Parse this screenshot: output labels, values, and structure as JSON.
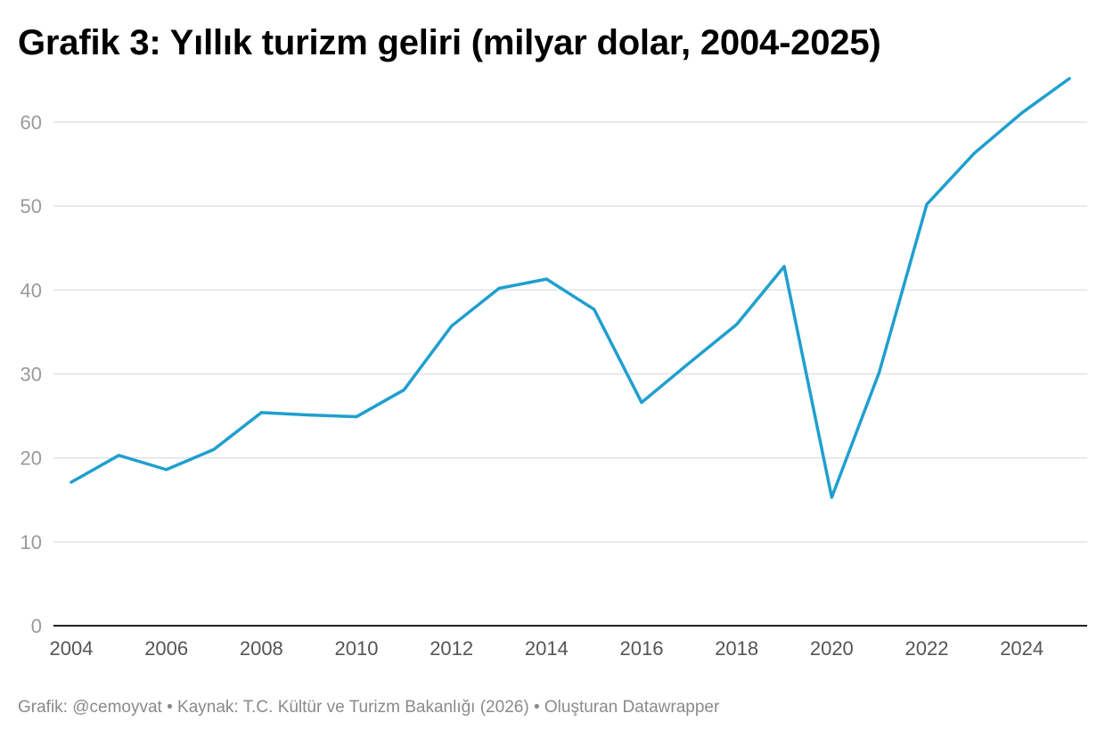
{
  "title": "Grafik 3: Yıllık turizm geliri (milyar dolar, 2004-2025)",
  "footer": {
    "credit": "Grafik: @cemoyvat",
    "source": "Kaynak: T.C. Kültür ve Turizm Bakanlığı (2026)",
    "tool": "Oluşturan Datawrapper",
    "separator": "•"
  },
  "colors": {
    "line": "#1f9fcf",
    "grid": "#e3e3e3",
    "baseline": "#222222"
  },
  "chart_data": {
    "type": "line",
    "title": "Grafik 3: Yıllık turizm geliri (milyar dolar, 2004-2025)",
    "xlabel": "",
    "ylabel": "",
    "ylim": [
      0,
      65
    ],
    "xlim": [
      2004,
      2025
    ],
    "y_ticks": [
      0,
      10,
      20,
      30,
      40,
      50,
      60
    ],
    "x_ticks": [
      2004,
      2006,
      2008,
      2010,
      2012,
      2014,
      2016,
      2018,
      2020,
      2022,
      2024
    ],
    "grid": true,
    "legend": "none",
    "x": [
      2004,
      2005,
      2006,
      2007,
      2008,
      2009,
      2010,
      2011,
      2012,
      2013,
      2014,
      2015,
      2016,
      2017,
      2018,
      2019,
      2020,
      2021,
      2022,
      2023,
      2024,
      2025
    ],
    "series": [
      {
        "values": [
          17.1,
          20.3,
          18.6,
          21.0,
          25.4,
          25.1,
          24.9,
          28.1,
          35.7,
          40.2,
          41.3,
          37.7,
          26.6,
          31.3,
          35.9,
          42.8,
          15.3,
          30.2,
          50.2,
          56.3,
          61.1,
          65.2
        ]
      }
    ]
  }
}
